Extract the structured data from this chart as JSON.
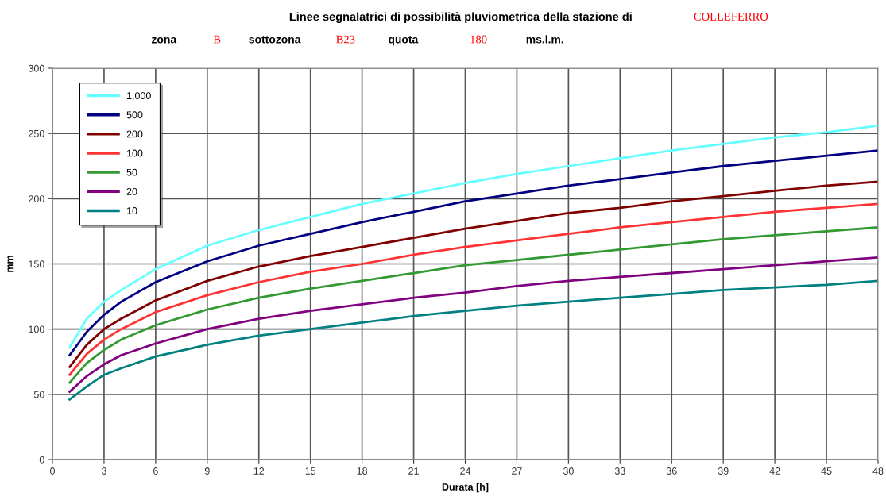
{
  "chart_data": {
    "type": "line",
    "title": "Linee segnalatrici di possibilità pluviometrica della stazione di",
    "annotations": [
      "COLLEFERRO",
      "zona",
      "B",
      "sottozona",
      "B23",
      "quota",
      "180",
      "ms.l.m."
    ],
    "xlabel": "Durata [h]",
    "ylabel": "mm",
    "x": [
      1,
      2,
      3,
      4,
      6,
      9,
      12,
      15,
      18,
      21,
      24,
      27,
      30,
      33,
      36,
      39,
      42,
      45,
      48
    ],
    "series": [
      {
        "name": "1,000",
        "color": "#66ffff",
        "values": [
          86,
          108,
          121,
          130,
          146,
          164,
          176,
          186,
          196,
          204,
          212,
          219,
          225,
          231,
          237,
          242,
          247,
          251,
          256
        ]
      },
      {
        "name": "500",
        "color": "#000080",
        "values": [
          80,
          98,
          111,
          121,
          136,
          152,
          164,
          173,
          182,
          190,
          198,
          204,
          210,
          215,
          220,
          225,
          229,
          233,
          237
        ]
      },
      {
        "name": "200",
        "color": "#800000",
        "values": [
          71,
          88,
          100,
          108,
          122,
          137,
          148,
          156,
          163,
          170,
          177,
          183,
          189,
          193,
          198,
          202,
          206,
          210,
          213
        ]
      },
      {
        "name": "100",
        "color": "#ff3333",
        "values": [
          65,
          81,
          92,
          100,
          113,
          126,
          136,
          144,
          150,
          157,
          163,
          168,
          173,
          178,
          182,
          186,
          190,
          193,
          196
        ]
      },
      {
        "name": "50",
        "color": "#339933",
        "values": [
          59,
          74,
          84,
          92,
          103,
          115,
          124,
          131,
          137,
          143,
          149,
          153,
          157,
          161,
          165,
          169,
          172,
          175,
          178
        ]
      },
      {
        "name": "20",
        "color": "#800080",
        "values": [
          52,
          64,
          73,
          80,
          89,
          100,
          108,
          114,
          119,
          124,
          128,
          133,
          137,
          140,
          143,
          146,
          149,
          152,
          155
        ]
      },
      {
        "name": "10",
        "color": "#008080",
        "values": [
          46,
          56,
          65,
          70,
          79,
          88,
          95,
          100,
          105,
          110,
          114,
          118,
          121,
          124,
          127,
          130,
          132,
          134,
          137
        ]
      }
    ],
    "xlim": [
      0,
      48
    ],
    "xticks": [
      0,
      3,
      6,
      9,
      12,
      15,
      18,
      21,
      24,
      27,
      30,
      33,
      36,
      39,
      42,
      45,
      48
    ],
    "ylim": [
      0,
      300
    ],
    "yticks": [
      0,
      50,
      100,
      150,
      200,
      250,
      300
    ],
    "grid": true,
    "legend": "top left",
    "marker": "none",
    "line_style": "solid"
  }
}
